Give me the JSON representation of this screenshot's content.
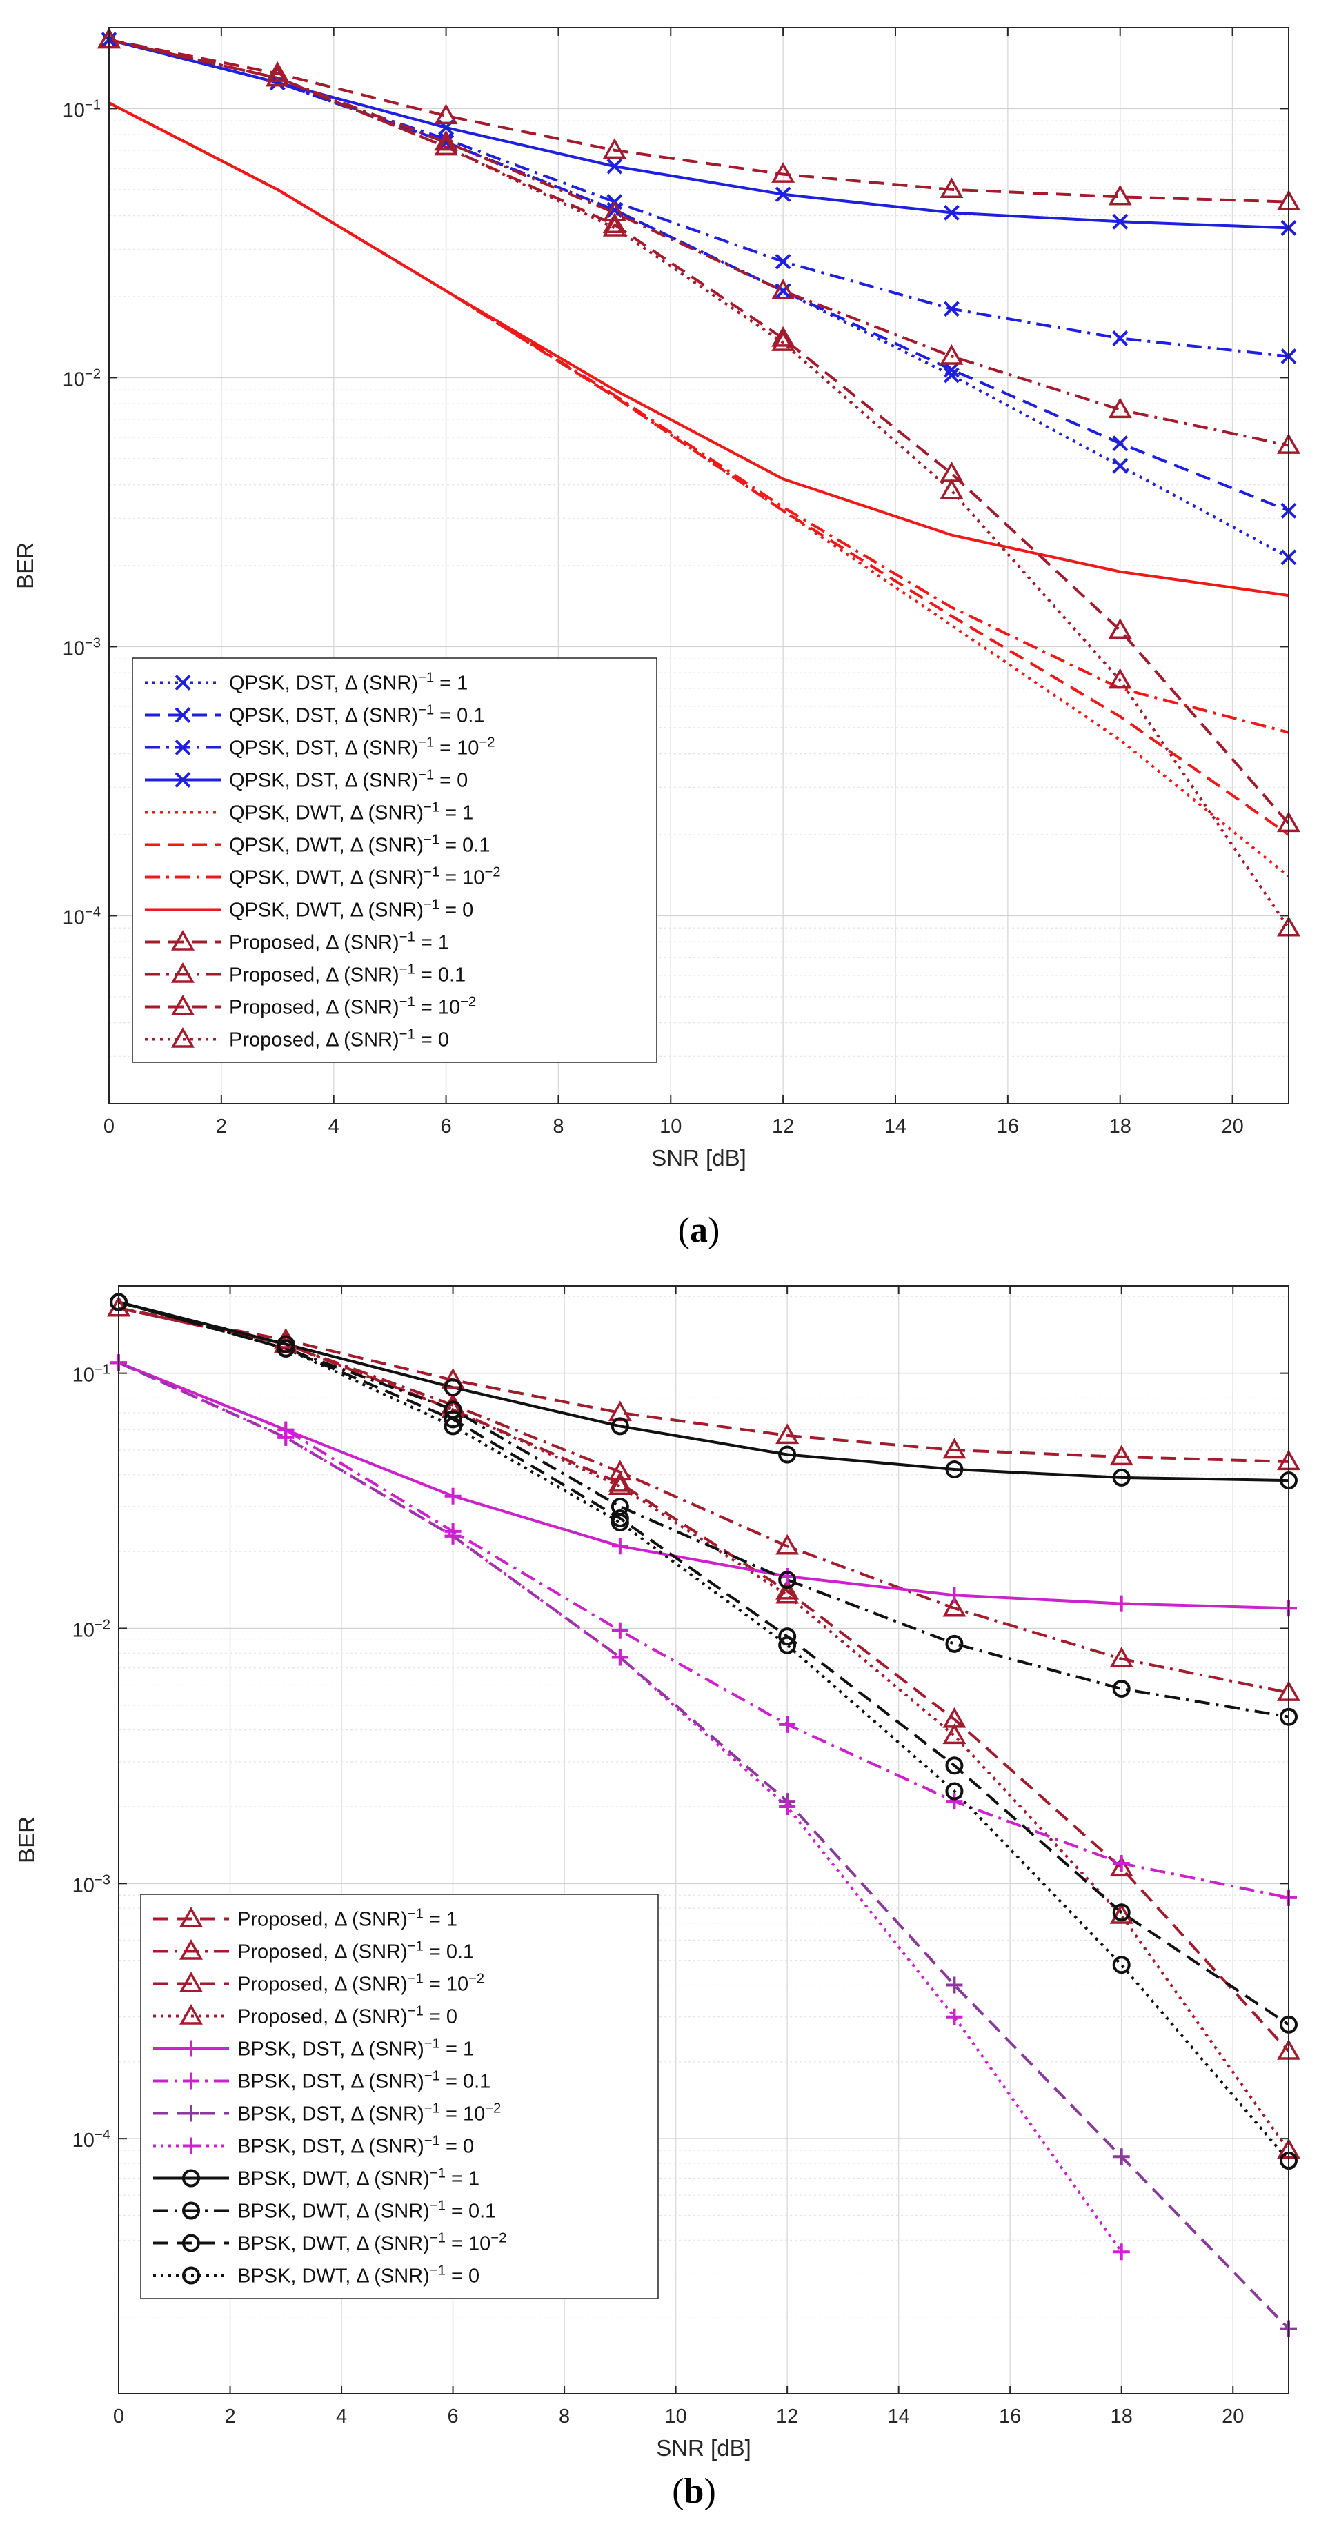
{
  "chart_data": [
    {
      "type": "line",
      "caption_letter": "a",
      "xlabel": "SNR [dB]",
      "ylabel": "BER",
      "xlim": [
        0,
        21
      ],
      "ylim": [
        2e-05,
        0.2
      ],
      "yscale": "log",
      "grid": true,
      "legend_position": "bottom-left",
      "xticks": [
        0,
        2,
        4,
        6,
        8,
        10,
        12,
        14,
        16,
        18,
        20
      ],
      "yticks": [
        0.0001,
        0.001,
        0.01,
        0.1
      ],
      "ytick_labels": [
        "10^-4",
        "10^-3",
        "10^-2",
        "10^-1"
      ],
      "series": [
        {
          "name": "QPSK, DST, Δ (SNR)^-1 = 1",
          "color": "#1f1fe0",
          "dash": "dot",
          "marker": "x",
          "x": [
            0,
            3,
            6,
            9,
            12,
            15,
            18,
            21
          ],
          "y": [
            0.18,
            0.125,
            0.075,
            0.042,
            0.021,
            0.0102,
            0.0047,
            0.00215
          ]
        },
        {
          "name": "QPSK, DST, Δ (SNR)^-1 = 0.1",
          "color": "#1f1fe0",
          "dash": "dash",
          "marker": "x",
          "x": [
            0,
            3,
            6,
            9,
            12,
            15,
            18,
            21
          ],
          "y": [
            0.18,
            0.125,
            0.075,
            0.042,
            0.021,
            0.0107,
            0.0057,
            0.0032
          ]
        },
        {
          "name": "QPSK, DST, Δ (SNR)^-1 = 10^-2",
          "color": "#1f1fe0",
          "dash": "dashdot",
          "marker": "x",
          "x": [
            0,
            3,
            6,
            9,
            12,
            15,
            18,
            21
          ],
          "y": [
            0.18,
            0.125,
            0.077,
            0.045,
            0.027,
            0.018,
            0.014,
            0.012
          ]
        },
        {
          "name": "QPSK, DST, Δ (SNR)^-1 = 0",
          "color": "#1f1fe0",
          "dash": "solid",
          "marker": "x",
          "x": [
            0,
            3,
            6,
            9,
            12,
            15,
            18,
            21
          ],
          "y": [
            0.18,
            0.125,
            0.085,
            0.061,
            0.048,
            0.041,
            0.038,
            0.036
          ]
        },
        {
          "name": "QPSK, DWT, Δ (SNR)^-1 = 1",
          "color": "#ee1a1a",
          "dash": "dot",
          "marker": "none",
          "x": [
            0,
            3,
            6,
            9,
            12,
            15,
            18,
            21
          ],
          "y": [
            0.105,
            0.05,
            0.021,
            0.0085,
            0.0032,
            0.0012,
            0.00045,
            0.00014
          ]
        },
        {
          "name": "QPSK, DWT, Δ (SNR)^-1 = 0.1",
          "color": "#ee1a1a",
          "dash": "dash",
          "marker": "none",
          "x": [
            0,
            3,
            6,
            9,
            12,
            15,
            18,
            21
          ],
          "y": [
            0.105,
            0.05,
            0.021,
            0.0085,
            0.0032,
            0.0013,
            0.00055,
            0.0002
          ]
        },
        {
          "name": "QPSK, DWT, Δ (SNR)^-1 = 10^-2",
          "color": "#ee1a1a",
          "dash": "dashdot",
          "marker": "none",
          "x": [
            0,
            3,
            6,
            9,
            12,
            15,
            18,
            21
          ],
          "y": [
            0.105,
            0.05,
            0.021,
            0.0086,
            0.0033,
            0.0014,
            0.0007,
            0.00048
          ]
        },
        {
          "name": "QPSK, DWT, Δ (SNR)^-1 = 0",
          "color": "#ee1a1a",
          "dash": "solid",
          "marker": "none",
          "x": [
            0,
            3,
            6,
            9,
            12,
            15,
            18,
            21
          ],
          "y": [
            0.105,
            0.05,
            0.021,
            0.009,
            0.0042,
            0.0026,
            0.0019,
            0.00155
          ]
        },
        {
          "name": "Proposed, Δ (SNR)^-1 = 1",
          "color": "#a31c2d",
          "dash": "dash",
          "marker": "triangle",
          "x": [
            0,
            3,
            6,
            9,
            12,
            15,
            18,
            21
          ],
          "y": [
            0.18,
            0.13,
            0.072,
            0.037,
            0.014,
            0.0044,
            0.00115,
            0.00022
          ]
        },
        {
          "name": "Proposed, Δ (SNR)^-1 = 0.1",
          "color": "#a31c2d",
          "dash": "dashdot",
          "marker": "triangle",
          "x": [
            0,
            3,
            6,
            9,
            12,
            15,
            18,
            21
          ],
          "y": [
            0.18,
            0.13,
            0.075,
            0.041,
            0.021,
            0.012,
            0.0076,
            0.0056
          ]
        },
        {
          "name": "Proposed, Δ (SNR)^-1 = 10^-2",
          "color": "#a31c2d",
          "dash": "dash",
          "marker": "triangle",
          "x": [
            0,
            3,
            6,
            9,
            12,
            15,
            18,
            21
          ],
          "y": [
            0.18,
            0.135,
            0.094,
            0.07,
            0.057,
            0.05,
            0.047,
            0.045
          ]
        },
        {
          "name": "Proposed, Δ (SNR)^-1 = 0",
          "color": "#a31c2d",
          "dash": "dot",
          "marker": "triangle",
          "x": [
            0,
            3,
            6,
            9,
            12,
            15,
            18,
            21
          ],
          "y": [
            0.18,
            0.13,
            0.072,
            0.036,
            0.0135,
            0.0038,
            0.00075,
            9e-05
          ]
        }
      ]
    },
    {
      "type": "line",
      "caption_letter": "b",
      "xlabel": "SNR [dB]",
      "ylabel": "BER",
      "xlim": [
        0,
        21
      ],
      "ylim": [
        1e-05,
        0.22
      ],
      "yscale": "log",
      "grid": true,
      "legend_position": "bottom-left",
      "xticks": [
        0,
        2,
        4,
        6,
        8,
        10,
        12,
        14,
        16,
        18,
        20
      ],
      "yticks": [
        0.0001,
        0.001,
        0.01,
        0.1
      ],
      "ytick_labels": [
        "10^-4",
        "10^-3",
        "10^-2",
        "10^-1"
      ],
      "series": [
        {
          "name": "Proposed, Δ (SNR)^-1 = 1",
          "color": "#a31c2d",
          "dash": "dash",
          "marker": "triangle",
          "x": [
            0,
            3,
            6,
            9,
            12,
            15,
            18,
            21
          ],
          "y": [
            0.18,
            0.13,
            0.072,
            0.037,
            0.014,
            0.0044,
            0.00115,
            0.00022
          ]
        },
        {
          "name": "Proposed, Δ (SNR)^-1 = 0.1",
          "color": "#a31c2d",
          "dash": "dashdot",
          "marker": "triangle",
          "x": [
            0,
            3,
            6,
            9,
            12,
            15,
            18,
            21
          ],
          "y": [
            0.18,
            0.13,
            0.075,
            0.041,
            0.021,
            0.012,
            0.0076,
            0.0056
          ]
        },
        {
          "name": "Proposed, Δ (SNR)^-1 = 10^-2",
          "color": "#a31c2d",
          "dash": "dash",
          "marker": "triangle",
          "x": [
            0,
            3,
            6,
            9,
            12,
            15,
            18,
            21
          ],
          "y": [
            0.18,
            0.135,
            0.094,
            0.07,
            0.057,
            0.05,
            0.047,
            0.045
          ]
        },
        {
          "name": "Proposed, Δ (SNR)^-1 = 0",
          "color": "#a31c2d",
          "dash": "dot",
          "marker": "triangle",
          "x": [
            0,
            3,
            6,
            9,
            12,
            15,
            18,
            21
          ],
          "y": [
            0.18,
            0.13,
            0.072,
            0.036,
            0.0135,
            0.0038,
            0.00075,
            9e-05
          ]
        },
        {
          "name": "BPSK, DST, Δ (SNR)^-1 = 1",
          "color": "#cc22cc",
          "dash": "solid",
          "marker": "plus",
          "x": [
            0,
            3,
            6,
            9,
            12,
            15,
            18,
            21
          ],
          "y": [
            0.11,
            0.06,
            0.033,
            0.021,
            0.016,
            0.0135,
            0.0125,
            0.012
          ]
        },
        {
          "name": "BPSK, DST, Δ (SNR)^-1 = 0.1",
          "color": "#cc22cc",
          "dash": "dashdot",
          "marker": "plus",
          "x": [
            0,
            3,
            6,
            9,
            12,
            15,
            18,
            21
          ],
          "y": [
            0.11,
            0.06,
            0.024,
            0.0098,
            0.0042,
            0.0021,
            0.0012,
            0.00088
          ]
        },
        {
          "name": "BPSK, DST, Δ (SNR)^-1 = 10^-2",
          "color": "#8a3a9a",
          "dash": "dash",
          "marker": "plus",
          "x": [
            0,
            3,
            6,
            9,
            12,
            15,
            18,
            21
          ],
          "y": [
            0.11,
            0.056,
            0.023,
            0.0077,
            0.0021,
            0.0004,
            8.5e-05,
            1.8e-05
          ]
        },
        {
          "name": "BPSK, DST, Δ (SNR)^-1 = 0",
          "color": "#cc22cc",
          "dash": "dot",
          "marker": "plus",
          "x": [
            0,
            3,
            6,
            9,
            12,
            15,
            18
          ],
          "y": [
            0.11,
            0.056,
            0.023,
            0.0077,
            0.002,
            0.0003,
            3.6e-05
          ]
        },
        {
          "name": "BPSK, DWT, Δ (SNR)^-1 = 1",
          "color": "#111111",
          "dash": "solid",
          "marker": "circle",
          "x": [
            0,
            3,
            6,
            9,
            12,
            15,
            18,
            21
          ],
          "y": [
            0.19,
            0.13,
            0.088,
            0.062,
            0.048,
            0.042,
            0.039,
            0.038
          ]
        },
        {
          "name": "BPSK, DWT, Δ (SNR)^-1 = 0.1",
          "color": "#111111",
          "dash": "dashdot",
          "marker": "circle",
          "x": [
            0,
            3,
            6,
            9,
            12,
            15,
            18,
            21
          ],
          "y": [
            0.19,
            0.125,
            0.072,
            0.03,
            0.0155,
            0.0087,
            0.0058,
            0.0045
          ]
        },
        {
          "name": "BPSK, DWT, Δ (SNR)^-1 = 10^-2",
          "color": "#111111",
          "dash": "dash",
          "marker": "circle",
          "x": [
            0,
            3,
            6,
            9,
            12,
            15,
            18,
            21
          ],
          "y": [
            0.19,
            0.125,
            0.066,
            0.027,
            0.0093,
            0.0029,
            0.00077,
            0.00028
          ]
        },
        {
          "name": "BPSK, DWT, Δ (SNR)^-1 = 0",
          "color": "#111111",
          "dash": "dot",
          "marker": "circle",
          "x": [
            0,
            3,
            6,
            9,
            12,
            15,
            18,
            21
          ],
          "y": [
            0.19,
            0.125,
            0.062,
            0.026,
            0.0086,
            0.0023,
            0.00048,
            8.2e-05
          ]
        }
      ]
    }
  ]
}
